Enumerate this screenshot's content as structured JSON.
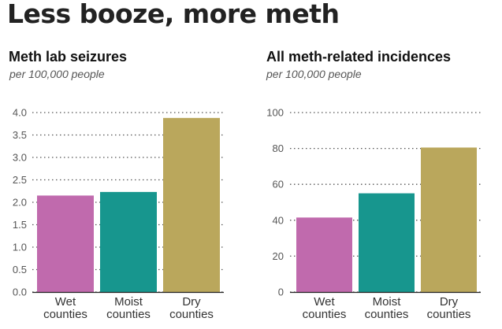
{
  "headline": "Less booze, more meth",
  "chart_data": [
    {
      "type": "bar",
      "title": "Meth lab seizures",
      "subtitle": "per 100,000 people",
      "categories": [
        "Wet counties",
        "Moist counties",
        "Dry counties"
      ],
      "category_lines": [
        [
          "Wet",
          "counties"
        ],
        [
          "Moist",
          "counties"
        ],
        [
          "Dry",
          "counties"
        ]
      ],
      "values": [
        2.15,
        2.23,
        3.88
      ],
      "ylim": [
        0,
        4
      ],
      "yticks": [
        "0.0",
        "0.5",
        "1.0",
        "1.5",
        "2.0",
        "2.5",
        "3.0",
        "3.5",
        "4.0"
      ],
      "grid": true,
      "colors": [
        "#c06aad",
        "#17968e",
        "#baa75c"
      ]
    },
    {
      "type": "bar",
      "title": "All meth-related incidences",
      "subtitle": "per 100,000 people",
      "categories": [
        "Wet counties",
        "Moist counties",
        "Dry counties"
      ],
      "category_lines": [
        [
          "Wet",
          "counties"
        ],
        [
          "Moist",
          "counties"
        ],
        [
          "Dry",
          "counties"
        ]
      ],
      "values": [
        41.5,
        55,
        80.5
      ],
      "ylim": [
        0,
        100
      ],
      "yticks": [
        "0",
        "20",
        "40",
        "60",
        "80",
        "100"
      ],
      "grid": true,
      "colors": [
        "#c06aad",
        "#17968e",
        "#baa75c"
      ]
    }
  ]
}
